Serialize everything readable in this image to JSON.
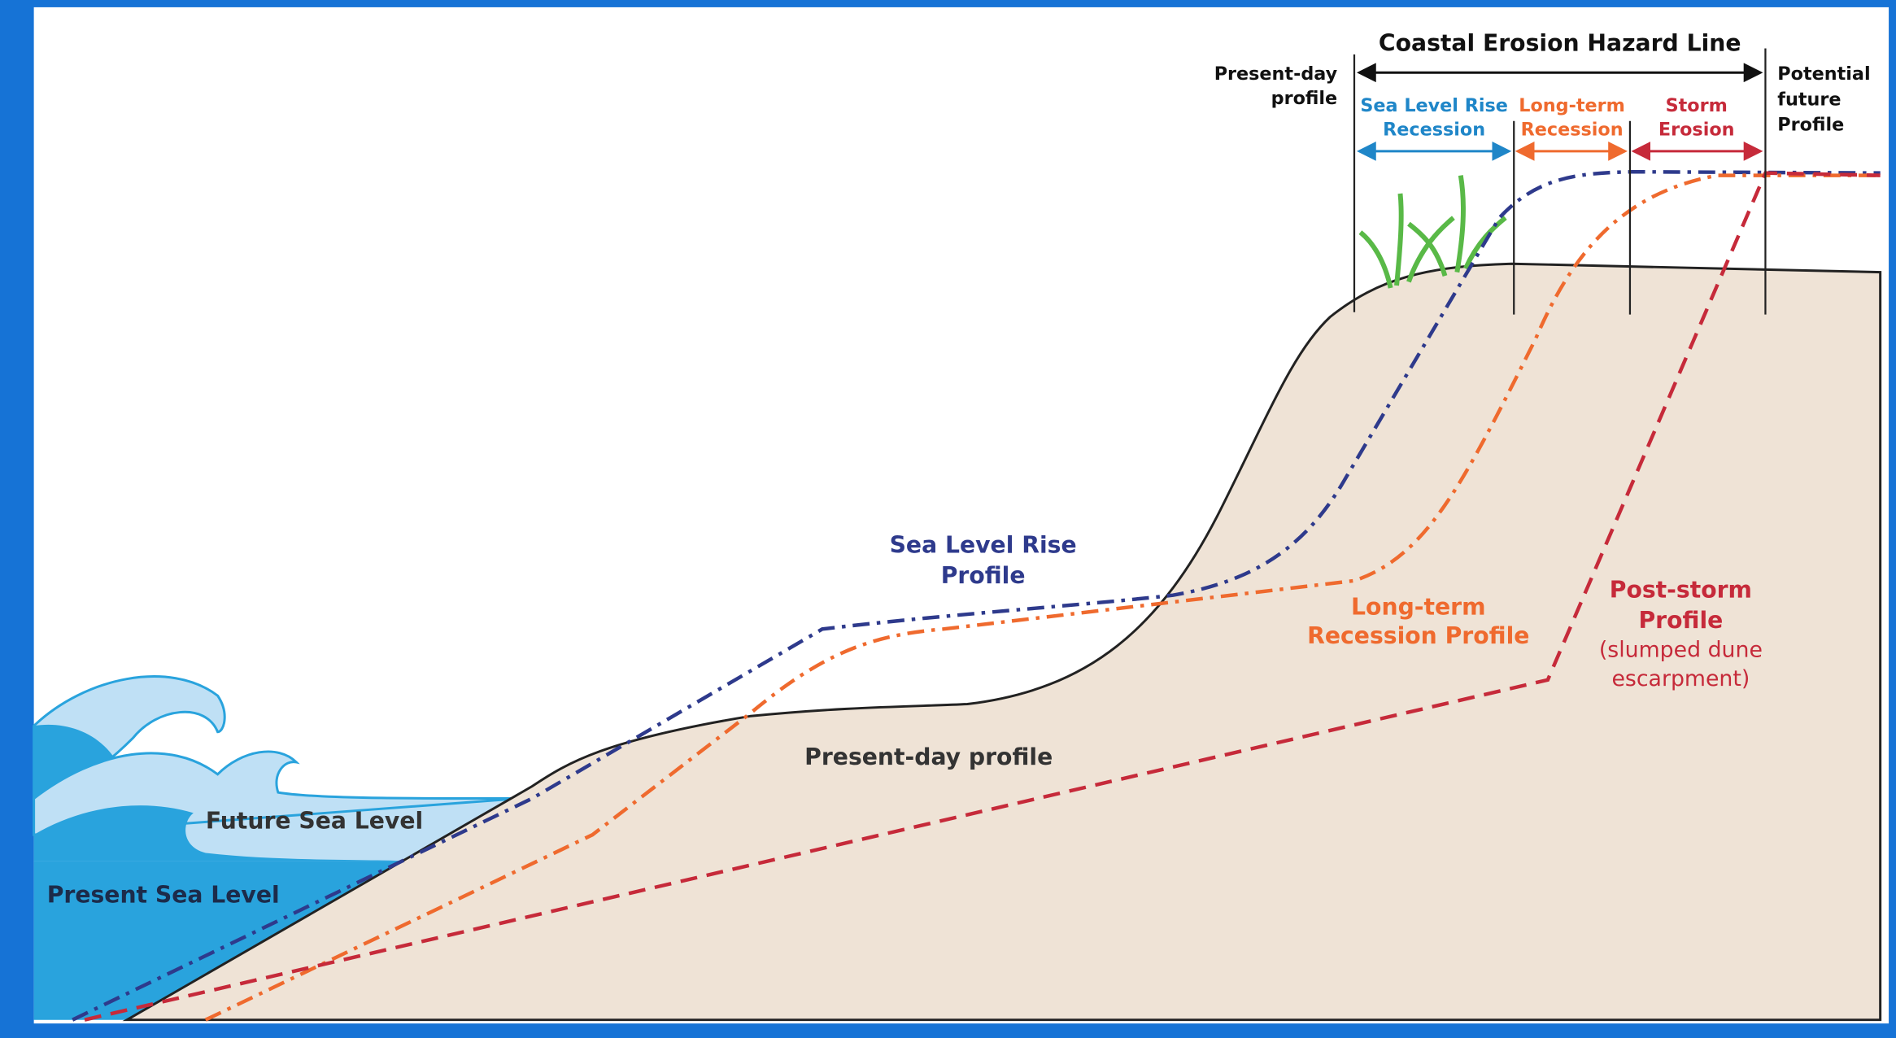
{
  "title": "Coastal Erosion Hazard Line",
  "top_labels": {
    "present_day": [
      "Present-day",
      "profile"
    ],
    "slr_recession": [
      "Sea Level Rise",
      "Recession"
    ],
    "long_term_recession": [
      "Long-term",
      "Recession"
    ],
    "storm_erosion": [
      "Storm",
      "Erosion"
    ],
    "potential_future": [
      "Potential",
      "future",
      "Profile"
    ]
  },
  "profiles": {
    "slr": [
      "Sea Level Rise",
      "Profile"
    ],
    "long_term": [
      "Long-term",
      "Recession Profile"
    ],
    "post_storm": [
      "Post-storm",
      "Profile"
    ],
    "post_storm_note": [
      "(slumped dune",
      "escarpment)"
    ],
    "present_day": "Present-day profile"
  },
  "sea": {
    "future": "Future Sea Level",
    "present": "Present Sea Level"
  }
}
